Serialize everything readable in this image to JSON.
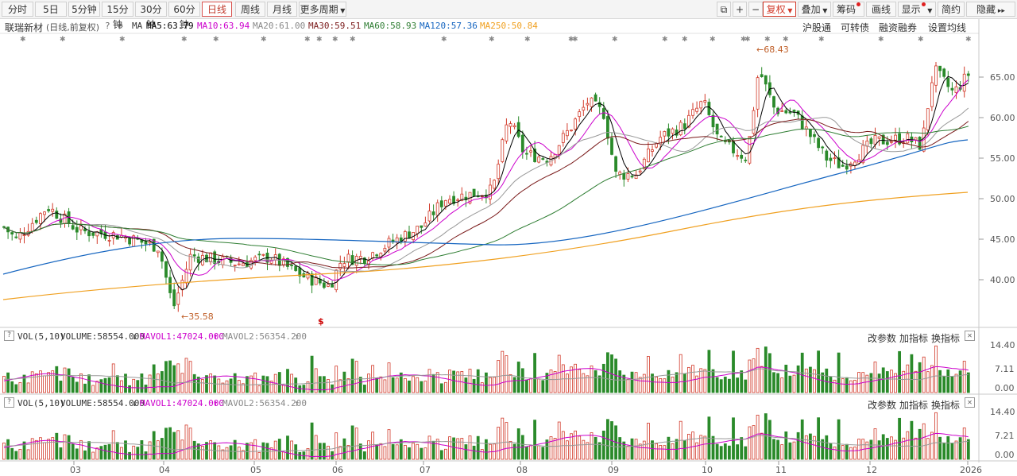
{
  "toolbar": {
    "period_tabs": [
      "分时",
      "5日",
      "5分钟",
      "15分钟",
      "30分钟",
      "60分钟",
      "日线",
      "周线",
      "月线",
      "更多周期"
    ],
    "active_tab": "日线",
    "right_tools": [
      "复权",
      "叠加",
      "筹码",
      "画线",
      "显示",
      "简约",
      "隐藏"
    ]
  },
  "legend": {
    "stock_name": "联瑞新材",
    "mode": "(日线,前复权)",
    "ma_label": "MA",
    "ma5": "MA5:63.79",
    "ma10": "MA10:63.94",
    "ma20": "MA20:61.00",
    "ma30": "MA30:59.51",
    "ma60": "MA60:58.93",
    "ma120": "MA120:57.36",
    "ma250": "MA250:50.84",
    "links": [
      "沪股通",
      "可转债",
      "融资融券",
      "设置均线"
    ]
  },
  "colors": {
    "ma5": "#000000",
    "ma10": "#cc00cc",
    "ma20": "#999999",
    "ma30": "#7a1a1a",
    "ma60": "#2e7d32",
    "ma120": "#1565c0",
    "ma250": "#f0a020",
    "up": "#d23a2a",
    "down": "#2a8a2a"
  },
  "price_axis": [
    "65.00",
    "60.00",
    "55.00",
    "50.00",
    "45.00",
    "40.00"
  ],
  "annotations": {
    "high": "68.43",
    "low": "35.58",
    "marker": "$"
  },
  "vol_panels": [
    {
      "title": "VOL(5,10)",
      "volume": "VOLUME:58554.000",
      "mavol1": "MAVOL1:47024.000",
      "mavol2": "MAVOL2:56354.200",
      "axis": [
        "14.40",
        "7.11",
        "0.00"
      ],
      "actions": [
        "改参数",
        "加指标",
        "换指标"
      ]
    },
    {
      "title": "VOL(5,10)",
      "volume": "VOLUME:58554.000",
      "mavol1": "MAVOL1:47024.000",
      "mavol2": "MAVOL2:56354.200",
      "axis": [
        "14.40",
        "7.21",
        "0.00"
      ],
      "actions": [
        "改参数",
        "加指标",
        "换指标"
      ]
    }
  ],
  "months": [
    "03",
    "04",
    "05",
    "06",
    "07",
    "08",
    "09",
    "10",
    "11",
    "12",
    "2026"
  ]
}
